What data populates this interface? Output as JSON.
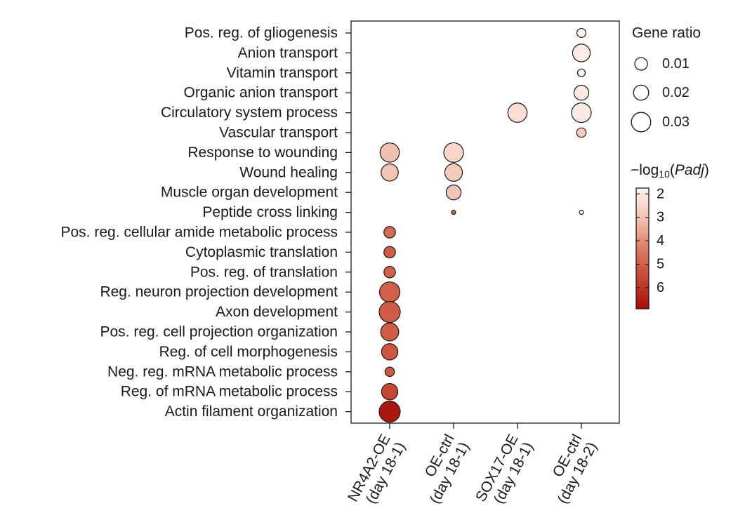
{
  "chart_data": {
    "type": "scatter",
    "subtype": "bubble",
    "terms": [
      "Pos. reg. of gliogenesis",
      "Anion transport",
      "Vitamin transport",
      "Organic anion transport",
      "Circulatory system process",
      "Vascular transport",
      "Response to wounding",
      "Wound healing",
      "Muscle organ development",
      "Peptide cross linking",
      "Pos. reg. cellular amide metabolic process",
      "Cytoplasmic translation",
      "Pos. reg. of translation",
      "Reg. neuron projection development",
      "Axon development",
      "Pos. reg. cell projection organization",
      "Reg. of cell morphogenesis",
      "Neg. reg. mRNA metabolic process",
      "Reg. of mRNA metabolic process",
      "Actin filament organization"
    ],
    "conditions": [
      {
        "line1": "NR4A2-OE",
        "line2": "(day 18-1)"
      },
      {
        "line1": "OE-ctrl",
        "line2": "(day 18-1)"
      },
      {
        "line1": "SOX17-OE",
        "line2": "(day 18-1)"
      },
      {
        "line1": "OE-ctrl",
        "line2": "(day 18-2)"
      }
    ],
    "points": [
      {
        "term": 0,
        "condition": 3,
        "gene_ratio": 0.0055,
        "neglog10_padj": 1.8
      },
      {
        "term": 1,
        "condition": 3,
        "gene_ratio": 0.021,
        "neglog10_padj": 1.9
      },
      {
        "term": 2,
        "condition": 3,
        "gene_ratio": 0.004,
        "neglog10_padj": 1.8
      },
      {
        "term": 3,
        "condition": 3,
        "gene_ratio": 0.015,
        "neglog10_padj": 2.0
      },
      {
        "term": 4,
        "condition": 2,
        "gene_ratio": 0.025,
        "neglog10_padj": 2.3
      },
      {
        "term": 4,
        "condition": 3,
        "gene_ratio": 0.026,
        "neglog10_padj": 2.0
      },
      {
        "term": 5,
        "condition": 3,
        "gene_ratio": 0.006,
        "neglog10_padj": 2.8
      },
      {
        "term": 6,
        "condition": 0,
        "gene_ratio": 0.025,
        "neglog10_padj": 3.1
      },
      {
        "term": 6,
        "condition": 1,
        "gene_ratio": 0.026,
        "neglog10_padj": 2.5
      },
      {
        "term": 7,
        "condition": 0,
        "gene_ratio": 0.02,
        "neglog10_padj": 3.0
      },
      {
        "term": 7,
        "condition": 1,
        "gene_ratio": 0.021,
        "neglog10_padj": 2.8
      },
      {
        "term": 8,
        "condition": 1,
        "gene_ratio": 0.015,
        "neglog10_padj": 3.0
      },
      {
        "term": 9,
        "condition": 1,
        "gene_ratio": 0.0008,
        "neglog10_padj": 5.0
      },
      {
        "term": 9,
        "condition": 3,
        "gene_ratio": 0.0006,
        "neglog10_padj": 1.8
      },
      {
        "term": 10,
        "condition": 0,
        "gene_ratio": 0.009,
        "neglog10_padj": 4.8
      },
      {
        "term": 11,
        "condition": 0,
        "gene_ratio": 0.009,
        "neglog10_padj": 5.1
      },
      {
        "term": 12,
        "condition": 0,
        "gene_ratio": 0.009,
        "neglog10_padj": 5.0
      },
      {
        "term": 13,
        "condition": 0,
        "gene_ratio": 0.028,
        "neglog10_padj": 5.0
      },
      {
        "term": 14,
        "condition": 0,
        "gene_ratio": 0.03,
        "neglog10_padj": 5.1
      },
      {
        "term": 15,
        "condition": 0,
        "gene_ratio": 0.022,
        "neglog10_padj": 5.1
      },
      {
        "term": 16,
        "condition": 0,
        "gene_ratio": 0.018,
        "neglog10_padj": 5.2
      },
      {
        "term": 17,
        "condition": 0,
        "gene_ratio": 0.006,
        "neglog10_padj": 5.2
      },
      {
        "term": 18,
        "condition": 0,
        "gene_ratio": 0.018,
        "neglog10_padj": 5.6
      },
      {
        "term": 19,
        "condition": 0,
        "gene_ratio": 0.03,
        "neglog10_padj": 6.7
      }
    ],
    "size_legend": {
      "title": "Gene ratio",
      "values": [
        0.01,
        0.02,
        0.03
      ],
      "labels": [
        "0.01",
        "0.02",
        "0.03"
      ]
    },
    "color_legend": {
      "title_prefix": "−log",
      "title_sub": "10",
      "title_paren_open": "(",
      "title_italic": "Padj",
      "title_paren_close": ")",
      "ticks": [
        2,
        3,
        4,
        5,
        6
      ],
      "tick_labels": [
        "2",
        "3",
        "4",
        "5",
        "6"
      ],
      "range": [
        1.75,
        6.9
      ],
      "colors": [
        "#fdf3ef",
        "#f2c3b3",
        "#dd7d65",
        "#c54632",
        "#a80d08"
      ]
    },
    "grid": false
  }
}
